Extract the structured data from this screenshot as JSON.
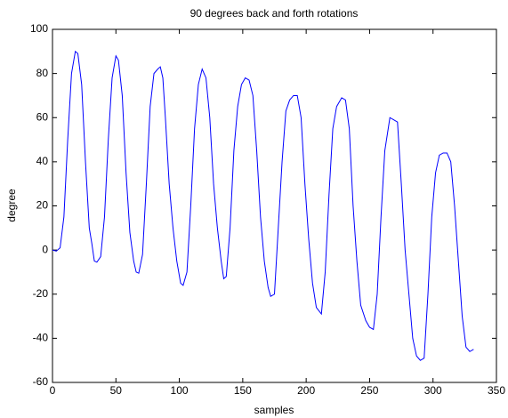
{
  "chart_data": {
    "type": "line",
    "title": "90 degrees back and forth rotations",
    "x_label": "samples",
    "y_label": "degree",
    "x": [
      0,
      3,
      6,
      9,
      12,
      15,
      18,
      20,
      23,
      26,
      29,
      31,
      33,
      35,
      38,
      41,
      44,
      47,
      50,
      52,
      55,
      58,
      61,
      64,
      66,
      68,
      71,
      74,
      77,
      80,
      83,
      85,
      87,
      89,
      92,
      95,
      98,
      101,
      103,
      106,
      109,
      112,
      115,
      118,
      121,
      124,
      127,
      130,
      133,
      135,
      137,
      140,
      143,
      146,
      149,
      152,
      155,
      158,
      161,
      164,
      167,
      170,
      172,
      175,
      178,
      181,
      184,
      187,
      190,
      193,
      196,
      199,
      202,
      205,
      208,
      212,
      215,
      218,
      221,
      224,
      228,
      231,
      234,
      237,
      240,
      243,
      247,
      250,
      253,
      256,
      259,
      262,
      266,
      269,
      272,
      275,
      278,
      281,
      284,
      287,
      290,
      293,
      296,
      299,
      302,
      305,
      308,
      311,
      314,
      317,
      320,
      323,
      326,
      329,
      332
    ],
    "series": [
      {
        "color": "#0000ff",
        "values": [
          0,
          -0.5,
          1,
          15,
          50,
          80,
          90,
          89,
          75,
          40,
          10,
          3,
          -5,
          -5.5,
          -3,
          15,
          50,
          78,
          88,
          86,
          70,
          35,
          8,
          -5,
          -10,
          -10.5,
          -2,
          30,
          65,
          80,
          82,
          83,
          78,
          60,
          30,
          10,
          -5,
          -15,
          -16,
          -10,
          20,
          55,
          75,
          82,
          78,
          60,
          30,
          10,
          -5,
          -13,
          -12,
          10,
          45,
          65,
          75,
          78,
          77,
          70,
          45,
          15,
          -5,
          -17,
          -21,
          -20,
          10,
          40,
          63,
          68,
          70,
          70,
          60,
          30,
          5,
          -15,
          -26,
          -29,
          -10,
          25,
          55,
          65,
          69,
          68,
          55,
          20,
          -5,
          -25,
          -32,
          -35,
          -36,
          -20,
          15,
          45,
          60,
          59,
          58,
          30,
          0,
          -20,
          -40,
          -48,
          -50,
          -49,
          -20,
          15,
          35,
          43,
          44,
          44,
          40,
          20,
          -5,
          -30,
          -44,
          -46,
          -45
        ]
      }
    ],
    "xlim": [
      0,
      350
    ],
    "xticks": [
      0,
      50,
      100,
      150,
      200,
      250,
      300,
      350
    ],
    "ylim": [
      -60,
      100
    ],
    "yticks": [
      -60,
      -40,
      -20,
      0,
      20,
      40,
      60,
      80,
      100
    ],
    "grid": false
  }
}
